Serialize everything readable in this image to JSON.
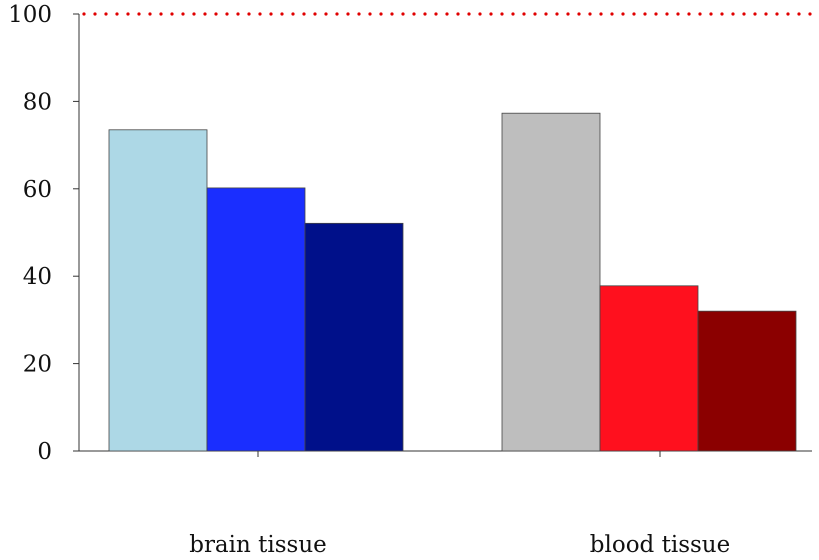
{
  "chart_data": {
    "type": "bar",
    "categories": [
      "brain tissue",
      "blood tissue"
    ],
    "groups": [
      {
        "category": "brain tissue",
        "bars": [
          {
            "value": 73.5,
            "color": "#add8e6"
          },
          {
            "value": 60.2,
            "color": "#1a2eff"
          },
          {
            "value": 52.1,
            "color": "#00108a"
          }
        ]
      },
      {
        "category": "blood tissue",
        "bars": [
          {
            "value": 77.3,
            "color": "#bebebe"
          },
          {
            "value": 37.8,
            "color": "#ff101e"
          },
          {
            "value": 32.0,
            "color": "#8b0000"
          }
        ]
      }
    ],
    "ylim": [
      0,
      100
    ],
    "yticks": [
      "0",
      "20",
      "40",
      "60",
      "80",
      "100"
    ],
    "reference_line": {
      "value": 100,
      "style": "dotted",
      "color": "#e00000"
    },
    "title": "",
    "xlabel": "",
    "ylabel": "",
    "grid": false,
    "legend": "none"
  }
}
